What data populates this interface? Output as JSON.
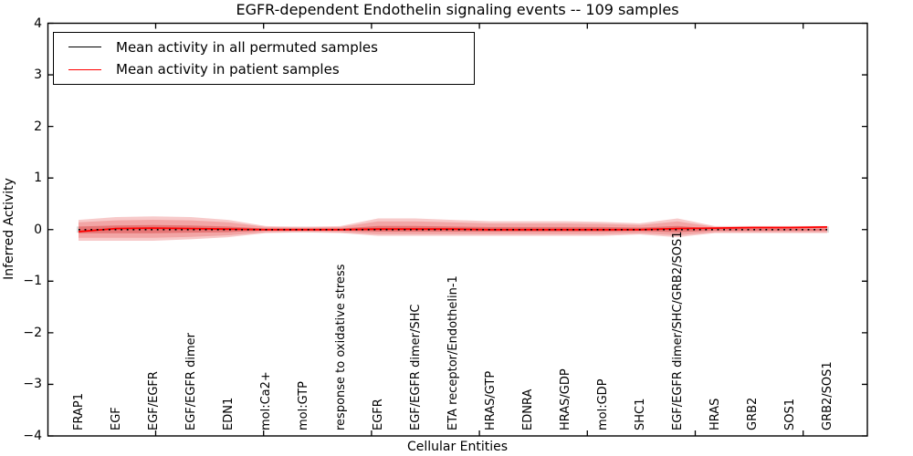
{
  "title": "EGFR-dependent Endothelin signaling events -- 109 samples",
  "axes": {
    "x_label": "Cellular Entities",
    "y_label": "Inferred Activity",
    "y_tick_labels": [
      "4",
      "3",
      "2",
      "1",
      "0",
      "−1",
      "−2",
      "−3",
      "−4"
    ],
    "y_tick_values": [
      4,
      3,
      2,
      1,
      0,
      -1,
      -2,
      -3,
      -4
    ]
  },
  "legend": {
    "items": [
      {
        "label": "Mean activity in all permuted samples",
        "color": "#000000"
      },
      {
        "label": "Mean activity in patient samples",
        "color": "#ff0000"
      }
    ]
  },
  "colors": {
    "permuted_band": "#dcdcdc",
    "patient_band_halo": "#f7caca",
    "patient_band_outer": "#f2a5a5",
    "patient_band_inner": "#e57575",
    "patient_line": "#ff0000",
    "permuted_line": "#000000",
    "spine": "#000000"
  },
  "chart_data": {
    "type": "line",
    "title": "EGFR-dependent Endothelin signaling events -- 109 samples",
    "xlabel": "Cellular Entities",
    "ylabel": "Inferred Activity",
    "ylim": [
      -4,
      4
    ],
    "grid": false,
    "legend_position": "upper left",
    "categories": [
      "FRAP1",
      "EGF",
      "EGF/EGFR",
      "EGF/EGFR dimer",
      "EDN1",
      "mol:Ca2+",
      "mol:GTP",
      "response to oxidative stress",
      "EGFR",
      "EGF/EGFR dimer/SHC",
      "ETA receptor/Endothelin-1",
      "HRAS/GTP",
      "EDNRA",
      "HRAS/GDP",
      "mol:GDP",
      "SHC1",
      "EGF/EGFR dimer/SHC/GRB2/SOS1",
      "HRAS",
      "GRB2",
      "SOS1",
      "GRB2/SOS1"
    ],
    "series": [
      {
        "name": "Mean activity in all permuted samples",
        "style": "dotted",
        "color": "#000000",
        "values": [
          0,
          0,
          0,
          0,
          0,
          0,
          0,
          0,
          0,
          0,
          0,
          0,
          0,
          0,
          0,
          0,
          0,
          0,
          0,
          0,
          0
        ]
      },
      {
        "name": "Mean activity in patient samples",
        "style": "solid",
        "color": "#ff0000",
        "values": [
          -0.04,
          0.02,
          0.03,
          0.02,
          0.01,
          0.0,
          0.0,
          0.0,
          0.01,
          0.01,
          0.01,
          0.0,
          0.0,
          0.0,
          0.0,
          0.0,
          0.02,
          0.03,
          0.04,
          0.04,
          0.05
        ]
      }
    ],
    "bands": {
      "permuted_range": {
        "upper": 0.06,
        "lower": 0.06
      },
      "patient_outer": {
        "upper": [
          0.14,
          0.18,
          0.19,
          0.18,
          0.14,
          0.05,
          0.04,
          0.05,
          0.16,
          0.16,
          0.14,
          0.12,
          0.12,
          0.12,
          0.11,
          0.09,
          0.16,
          0.05,
          0.05,
          0.05,
          0.05
        ],
        "lower": [
          0.16,
          0.16,
          0.16,
          0.14,
          0.11,
          0.05,
          0.04,
          0.05,
          0.09,
          0.09,
          0.09,
          0.09,
          0.09,
          0.09,
          0.09,
          0.07,
          0.11,
          0.05,
          0.05,
          0.05,
          0.05
        ]
      },
      "patient_inner": {
        "upper": [
          0.06,
          0.08,
          0.09,
          0.08,
          0.06,
          0.02,
          0.02,
          0.02,
          0.07,
          0.07,
          0.06,
          0.05,
          0.05,
          0.05,
          0.05,
          0.04,
          0.07,
          0.02,
          0.02,
          0.02,
          0.02
        ],
        "lower": [
          0.07,
          0.07,
          0.07,
          0.06,
          0.05,
          0.02,
          0.02,
          0.02,
          0.04,
          0.04,
          0.04,
          0.04,
          0.04,
          0.04,
          0.04,
          0.03,
          0.05,
          0.02,
          0.02,
          0.02,
          0.02
        ]
      }
    }
  }
}
